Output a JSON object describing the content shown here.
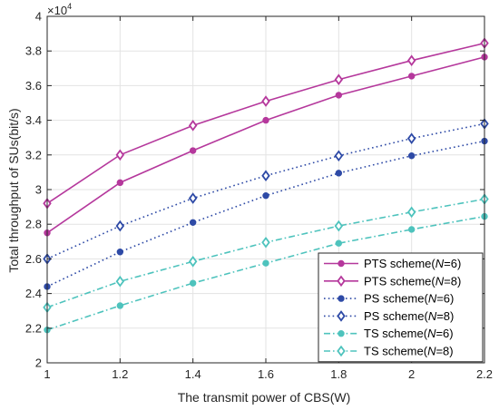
{
  "chart_data": {
    "type": "line",
    "xlabel": "The transmit power of CBS(W)",
    "ylabel": "Total throughput of SUs(bit/s)",
    "y_exponent_base": "×10",
    "y_exponent_power": "4",
    "xlim": [
      1,
      2.2
    ],
    "ylim": [
      2,
      4
    ],
    "x": [
      1,
      1.2,
      1.4,
      1.6,
      1.8,
      2,
      2.2
    ],
    "x_tick_labels": [
      "1",
      "1.2",
      "1.4",
      "1.6",
      "1.8",
      "2",
      "2.2"
    ],
    "y_ticks": [
      2,
      2.2,
      2.4,
      2.6,
      2.8,
      3,
      3.2,
      3.4,
      3.6,
      3.8,
      4
    ],
    "y_tick_labels": [
      "2",
      "2.2",
      "2.4",
      "2.6",
      "2.8",
      "3",
      "3.2",
      "3.4",
      "3.6",
      "3.8",
      "4"
    ],
    "grid": true,
    "legend_position": "bottom-right",
    "series": [
      {
        "legend_prefix": "PTS scheme(",
        "legend_var": "N",
        "legend_suffix": "=6)",
        "color": "#b5389c",
        "style": "solid",
        "marker": "dot",
        "values": [
          2.75,
          3.04,
          3.225,
          3.4,
          3.545,
          3.655,
          3.765
        ]
      },
      {
        "legend_prefix": "PTS scheme(",
        "legend_var": "N",
        "legend_suffix": "=8)",
        "color": "#b5389c",
        "style": "solid",
        "marker": "diamond",
        "values": [
          2.92,
          3.2,
          3.37,
          3.51,
          3.635,
          3.745,
          3.845
        ]
      },
      {
        "legend_prefix": "PS scheme(",
        "legend_var": "N",
        "legend_suffix": "=6)",
        "color": "#2e4aa6",
        "style": "dotted",
        "marker": "dot",
        "values": [
          2.44,
          2.64,
          2.81,
          2.965,
          3.095,
          3.195,
          3.28
        ]
      },
      {
        "legend_prefix": "PS scheme(",
        "legend_var": "N",
        "legend_suffix": "=8)",
        "color": "#2e4aa6",
        "style": "dotted",
        "marker": "diamond",
        "values": [
          2.6,
          2.79,
          2.95,
          3.08,
          3.195,
          3.295,
          3.38
        ]
      },
      {
        "legend_prefix": "TS scheme(",
        "legend_var": "N",
        "legend_suffix": "=6)",
        "color": "#4ec3bd",
        "style": "dashdot",
        "marker": "dot",
        "values": [
          2.19,
          2.33,
          2.46,
          2.575,
          2.69,
          2.77,
          2.845
        ]
      },
      {
        "legend_prefix": "TS scheme(",
        "legend_var": "N",
        "legend_suffix": "=8)",
        "color": "#4ec3bd",
        "style": "dashdot",
        "marker": "diamond",
        "values": [
          2.32,
          2.47,
          2.585,
          2.695,
          2.79,
          2.87,
          2.945
        ]
      }
    ]
  }
}
